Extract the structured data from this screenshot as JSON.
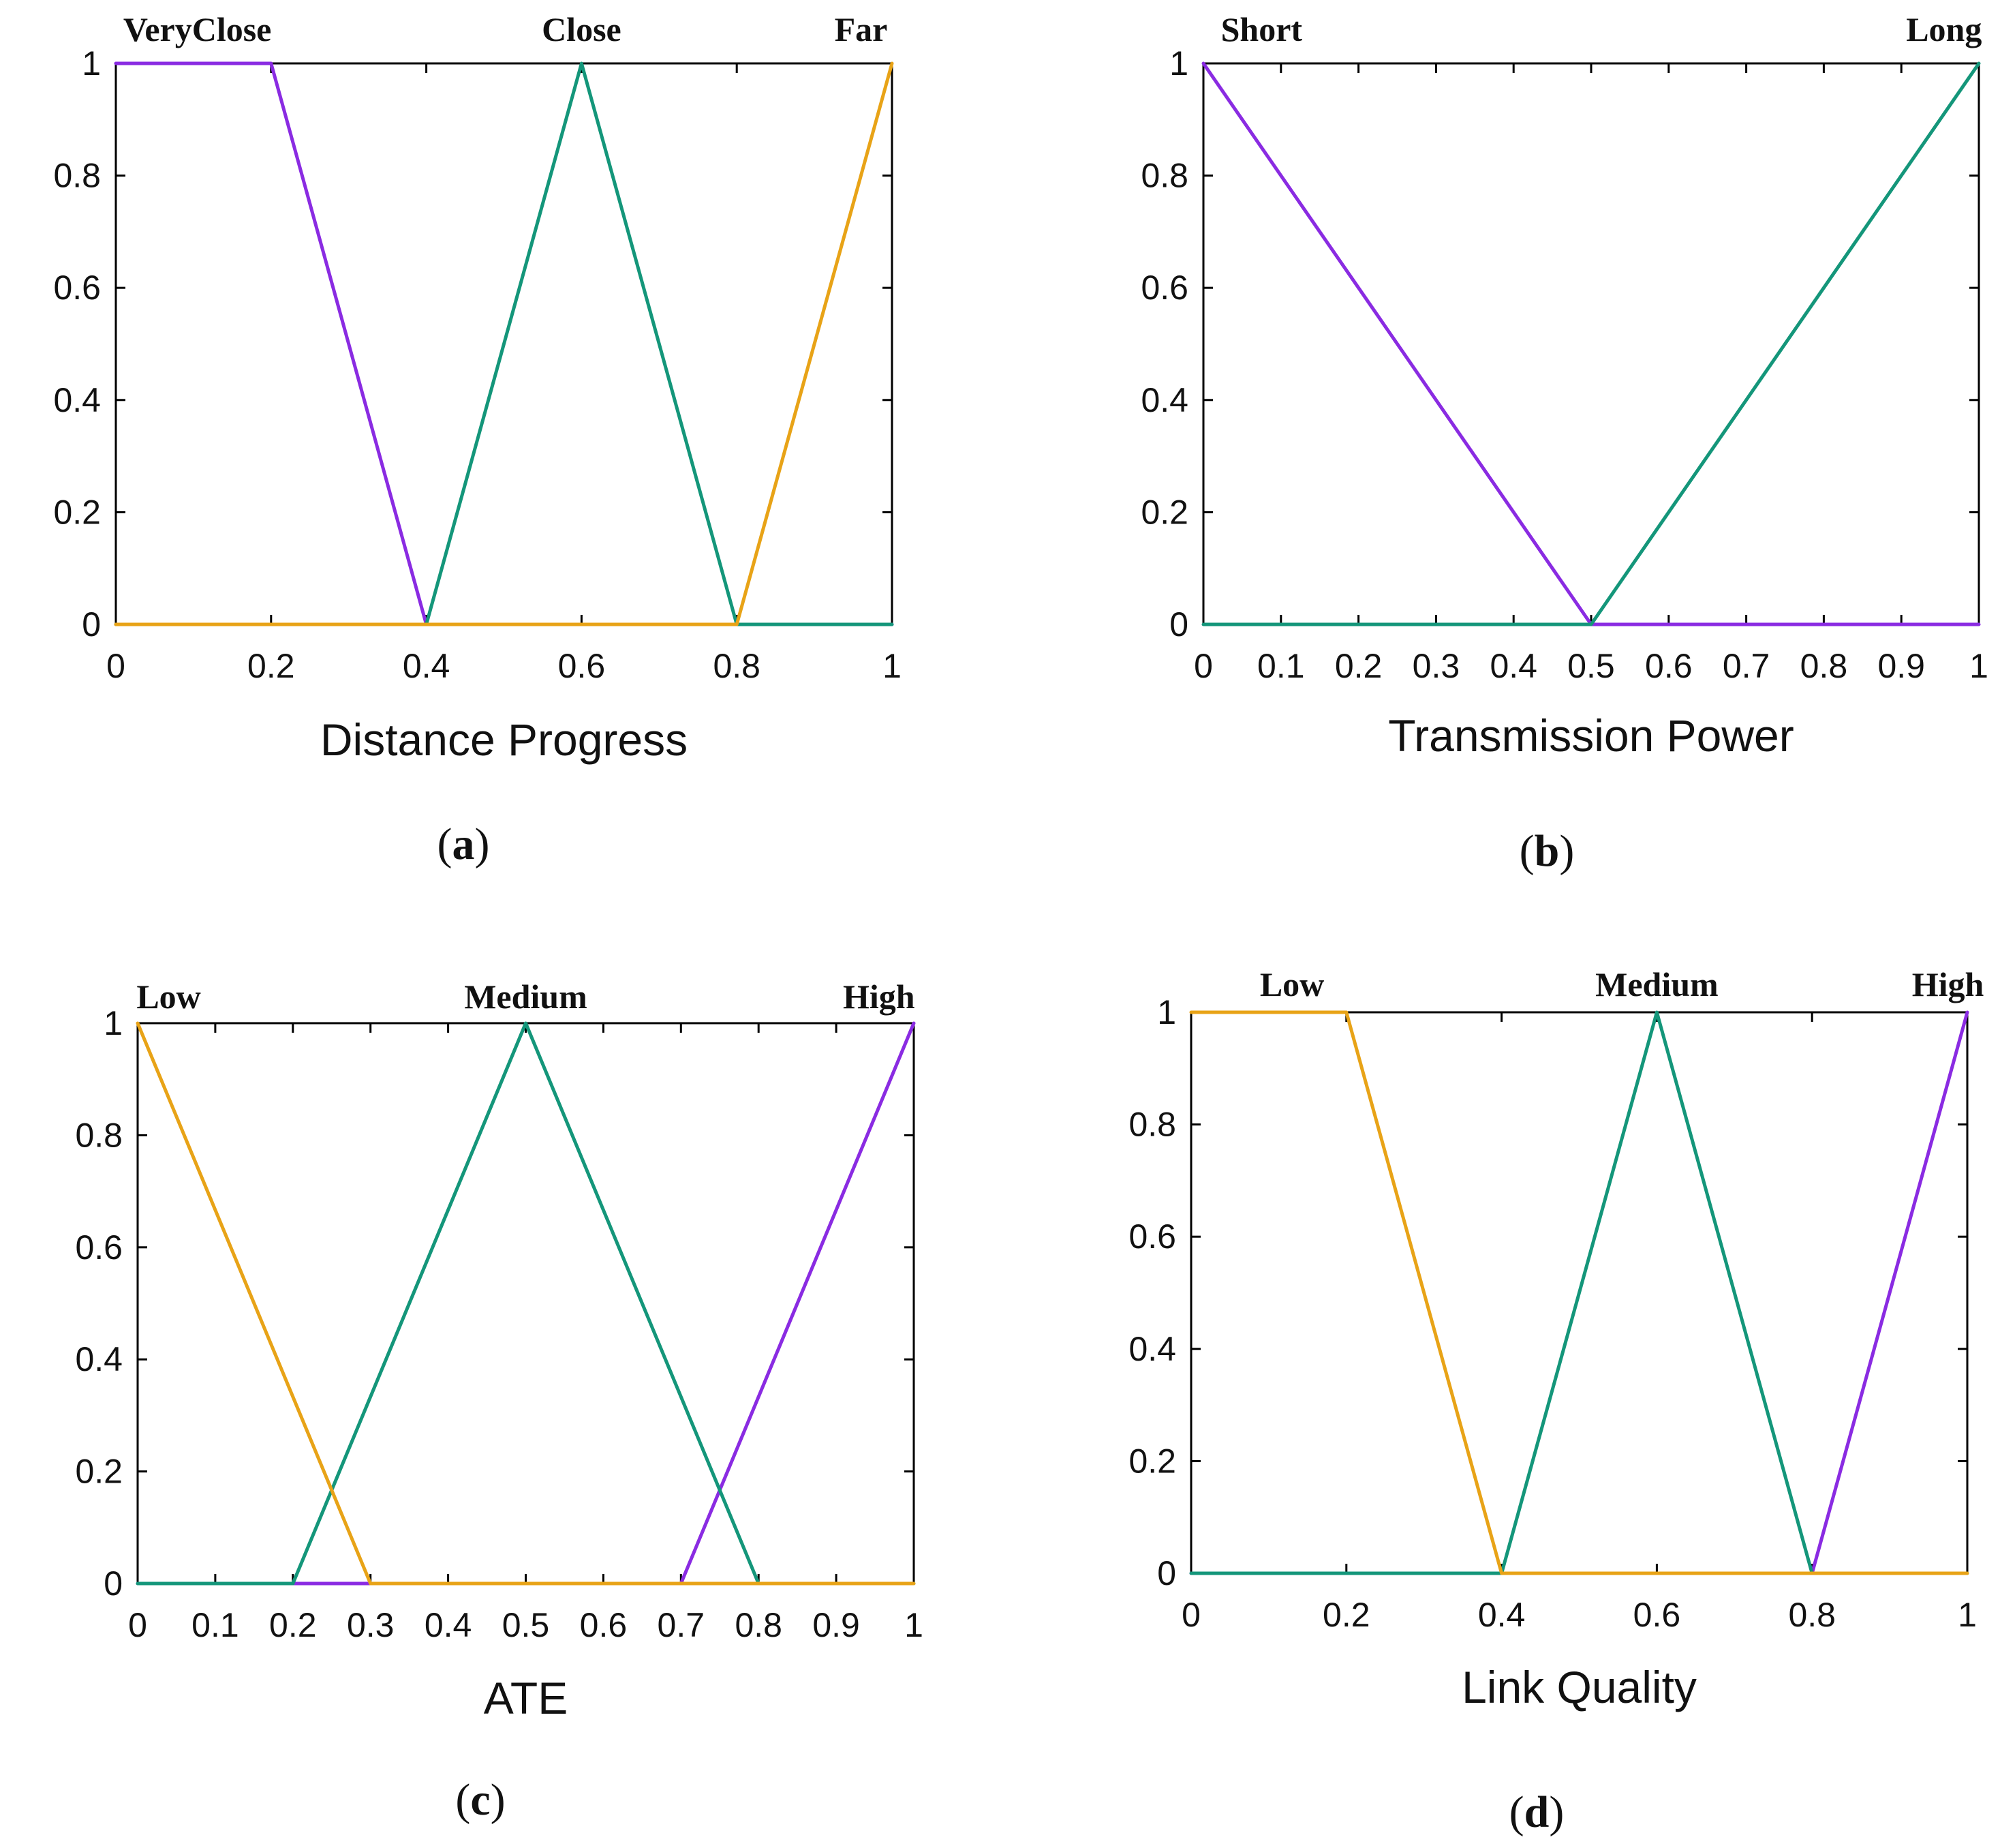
{
  "chart_data": [
    {
      "type": "line",
      "panel": "a",
      "caption": "(a)",
      "caption_letter": "a",
      "xlabel": "Distance Progress",
      "ylabel": "",
      "xlim": [
        0,
        1
      ],
      "ylim": [
        0,
        1
      ],
      "xticks": [
        "0",
        "0.2",
        "0.4",
        "0.6",
        "0.8",
        "1"
      ],
      "xtick_values": [
        0,
        0.2,
        0.4,
        0.6,
        0.8,
        1
      ],
      "yticks": [
        "0",
        "0.2",
        "0.4",
        "0.6",
        "0.8",
        "1"
      ],
      "ytick_values": [
        0,
        0.2,
        0.4,
        0.6,
        0.8,
        1
      ],
      "series": [
        {
          "name": "VeryClose",
          "color": "#8a2be2",
          "x": [
            0,
            0.2,
            0.4,
            1
          ],
          "y": [
            1,
            1,
            0,
            0
          ]
        },
        {
          "name": "Close",
          "color": "#14967a",
          "x": [
            0,
            0.4,
            0.6,
            0.8,
            1
          ],
          "y": [
            0,
            0,
            1,
            0,
            0
          ]
        },
        {
          "name": "Far",
          "color": "#e8a317",
          "x": [
            0,
            0.8,
            1
          ],
          "y": [
            0,
            0,
            1
          ]
        }
      ],
      "labels": [
        {
          "text": "VeryClose",
          "x": 0.105
        },
        {
          "text": "Close",
          "x": 0.6
        },
        {
          "text": "Far",
          "x": 0.96
        }
      ]
    },
    {
      "type": "line",
      "panel": "b",
      "caption": "(b)",
      "caption_letter": "b",
      "xlabel": "Transmission Power",
      "ylabel": "",
      "xlim": [
        0,
        1
      ],
      "ylim": [
        0,
        1
      ],
      "xticks": [
        "0",
        "0.1",
        "0.2",
        "0.3",
        "0.4",
        "0.5",
        "0.6",
        "0.7",
        "0.8",
        "0.9",
        "1"
      ],
      "xtick_values": [
        0,
        0.1,
        0.2,
        0.3,
        0.4,
        0.5,
        0.6,
        0.7,
        0.8,
        0.9,
        1
      ],
      "yticks": [
        "0",
        "0.2",
        "0.4",
        "0.6",
        "0.8",
        "1"
      ],
      "ytick_values": [
        0,
        0.2,
        0.4,
        0.6,
        0.8,
        1
      ],
      "series": [
        {
          "name": "Short",
          "color": "#8a2be2",
          "x": [
            0,
            0.5,
            1
          ],
          "y": [
            1,
            0,
            0
          ]
        },
        {
          "name": "Long",
          "color": "#14967a",
          "x": [
            0,
            0.5,
            1
          ],
          "y": [
            0,
            0,
            1
          ]
        }
      ],
      "labels": [
        {
          "text": "Short",
          "x": 0.075
        },
        {
          "text": "Long",
          "x": 0.955
        }
      ]
    },
    {
      "type": "line",
      "panel": "c",
      "caption": "(c)",
      "caption_letter": "c",
      "xlabel": "ATE",
      "ylabel": "",
      "xlim": [
        0,
        1
      ],
      "ylim": [
        0,
        1
      ],
      "xticks": [
        "0",
        "0.1",
        "0.2",
        "0.3",
        "0.4",
        "0.5",
        "0.6",
        "0.7",
        "0.8",
        "0.9",
        "1"
      ],
      "xtick_values": [
        0,
        0.1,
        0.2,
        0.3,
        0.4,
        0.5,
        0.6,
        0.7,
        0.8,
        0.9,
        1
      ],
      "yticks": [
        "0",
        "0.2",
        "0.4",
        "0.6",
        "0.8",
        "1"
      ],
      "ytick_values": [
        0,
        0.2,
        0.4,
        0.6,
        0.8,
        1
      ],
      "series": [
        {
          "name": "High",
          "color": "#8a2be2",
          "x": [
            0,
            0.7,
            1
          ],
          "y": [
            0,
            0,
            1
          ]
        },
        {
          "name": "Medium",
          "color": "#14967a",
          "x": [
            0,
            0.2,
            0.5,
            0.8,
            1
          ],
          "y": [
            0,
            0,
            1,
            0,
            0
          ]
        },
        {
          "name": "Low",
          "color": "#e8a317",
          "x": [
            0,
            0.3,
            1
          ],
          "y": [
            1,
            0,
            0
          ]
        }
      ],
      "labels": [
        {
          "text": "Low",
          "x": 0.04
        },
        {
          "text": "Medium",
          "x": 0.5
        },
        {
          "text": "High",
          "x": 0.955
        }
      ]
    },
    {
      "type": "line",
      "panel": "d",
      "caption": "(d)",
      "caption_letter": "d",
      "xlabel": "Link Quality",
      "ylabel": "",
      "xlim": [
        0,
        1
      ],
      "ylim": [
        0,
        1
      ],
      "xticks": [
        "0",
        "0.2",
        "0.4",
        "0.6",
        "0.8",
        "1"
      ],
      "xtick_values": [
        0,
        0.2,
        0.4,
        0.6,
        0.8,
        1
      ],
      "yticks": [
        "0",
        "0.2",
        "0.4",
        "0.6",
        "0.8",
        "1"
      ],
      "ytick_values": [
        0,
        0.2,
        0.4,
        0.6,
        0.8,
        1
      ],
      "series": [
        {
          "name": "High",
          "color": "#8a2be2",
          "x": [
            0,
            0.8,
            1
          ],
          "y": [
            0,
            0,
            1
          ]
        },
        {
          "name": "Medium",
          "color": "#14967a",
          "x": [
            0,
            0.4,
            0.6,
            0.8,
            1
          ],
          "y": [
            0,
            0,
            1,
            0,
            0
          ]
        },
        {
          "name": "Low",
          "color": "#e8a317",
          "x": [
            0,
            0.2,
            0.4,
            1
          ],
          "y": [
            1,
            1,
            0,
            0
          ]
        }
      ],
      "labels": [
        {
          "text": "Low",
          "x": 0.13
        },
        {
          "text": "Medium",
          "x": 0.6
        },
        {
          "text": "High",
          "x": 0.975
        }
      ]
    }
  ]
}
